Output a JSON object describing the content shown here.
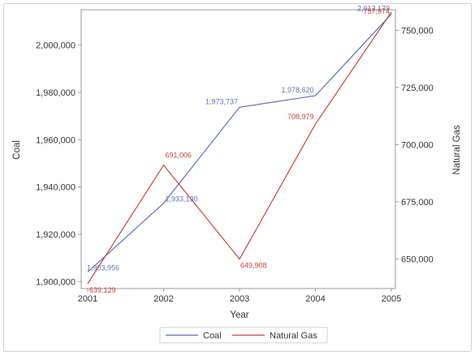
{
  "chart_data": {
    "type": "line",
    "x": [
      "2001",
      "2002",
      "2003",
      "2004",
      "2005"
    ],
    "xlabel": "Year",
    "ylabel_left": "Coal",
    "ylabel_right": "Natural Gas",
    "y_left_ticks": [
      "1,900,000",
      "1,920,000",
      "1,940,000",
      "1,960,000",
      "1,980,000",
      "2,000,000"
    ],
    "y_right_ticks": [
      "650,000",
      "675,000",
      "700,000",
      "725,000",
      "750,000"
    ],
    "y_left_range": [
      1897000,
      2015000
    ],
    "y_right_range": [
      637000,
      759000
    ],
    "grid": false,
    "legend_position": "bottom",
    "series": [
      {
        "name": "Coal",
        "axis": "left",
        "color": "#6170b4",
        "values": [
          1903956,
          1933130,
          1973737,
          1978620,
          2013179
        ],
        "labels": [
          "1,903,956",
          "1,933,130",
          "1,973,737",
          "1,978,620",
          "2,013,179"
        ]
      },
      {
        "name": "Natural Gas",
        "axis": "right",
        "color": "#c8463f",
        "values": [
          639129,
          691006,
          649908,
          708979,
          757974
        ],
        "labels": [
          "639,129",
          "691,006",
          "649,908",
          "708,979",
          "757,974"
        ]
      }
    ]
  }
}
